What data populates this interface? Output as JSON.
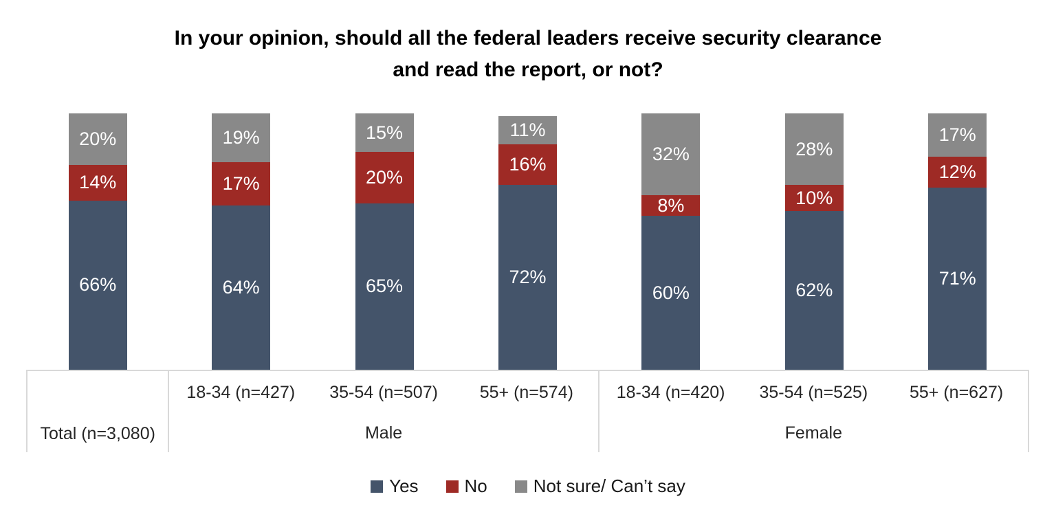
{
  "title": {
    "line1": "In your opinion, should all the federal leaders receive security clearance",
    "line2": "and read the report, or not?"
  },
  "chart_data": {
    "type": "bar",
    "subtype": "100%-stacked-column",
    "title": "In your opinion, should all the federal leaders receive security clearance and read the report, or not?",
    "categories": [
      "Total (n=3,080)",
      "Male 18-34 (n=427)",
      "Male 35-54 (n=507)",
      "Male 55+ (n=574)",
      "Female 18-34 (n=420)",
      "Female 35-54 (n=525)",
      "Female 55+ (n=627)"
    ],
    "series": [
      {
        "name": "Yes",
        "color": "#44546A",
        "values": [
          66,
          64,
          65,
          72,
          60,
          62,
          71
        ]
      },
      {
        "name": "No",
        "color": "#9E2A25",
        "values": [
          14,
          17,
          20,
          16,
          8,
          10,
          12
        ]
      },
      {
        "name": "Not sure/ Can’t say",
        "color": "#898989",
        "values": [
          20,
          19,
          15,
          11,
          32,
          28,
          17
        ]
      }
    ],
    "value_suffix": "%",
    "ylim": [
      0,
      100
    ],
    "grid": false,
    "legend_position": "bottom",
    "data_label_color": "#FFFFFF",
    "axis_groups": [
      {
        "label": "Total (n=3,080)",
        "merged": true,
        "cols": [
          ""
        ]
      },
      {
        "label": "Male",
        "merged": false,
        "cols": [
          "18-34 (n=427)",
          "35-54 (n=507)",
          "55+ (n=574)"
        ]
      },
      {
        "label": "Female",
        "merged": false,
        "cols": [
          "18-34 (n=420)",
          "35-54 (n=525)",
          "55+ (n=627)"
        ]
      }
    ],
    "axis_border_color": "#D9D9D9"
  }
}
